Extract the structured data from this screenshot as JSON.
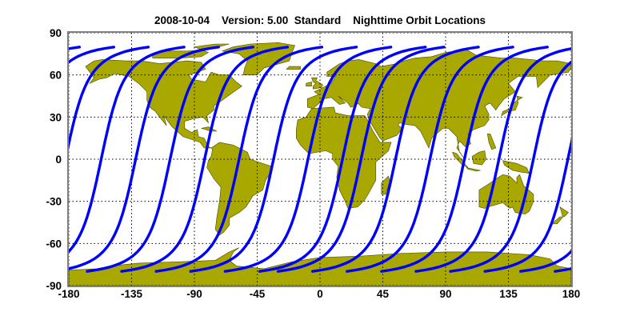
{
  "title": "2008-10-04    Version: 5.00  Standard    Nighttime Orbit Locations",
  "chart_data": {
    "type": "line",
    "title": "2008-10-04    Version: 5.00  Standard    Nighttime Orbit Locations",
    "xlabel": "",
    "ylabel": "",
    "xlim": [
      -180,
      180
    ],
    "ylim": [
      -90,
      90
    ],
    "x_ticks": [
      "-180",
      "-135",
      "-90",
      "-45",
      "0",
      "45",
      "90",
      "135",
      "180"
    ],
    "y_ticks": [
      "90",
      "60",
      "30",
      "0",
      "-30",
      "-60",
      "-90"
    ],
    "grid": true,
    "basemap": "world coastlines, filled land",
    "orbit_equator_crossing_longitudes": [
      -156.8,
      -132.1,
      -107.4,
      -82.7,
      -58.0,
      -33.3,
      -8.6,
      16.1,
      29.4,
      54.1,
      78.8,
      103.5,
      128.2,
      152.9,
      177.6
    ],
    "orbit_latitude_range": [
      -80,
      80
    ],
    "colors": {
      "orbit": "#0000ff",
      "land": "#a8a800",
      "coast": "#4a4a00",
      "frame": "#808080"
    }
  }
}
